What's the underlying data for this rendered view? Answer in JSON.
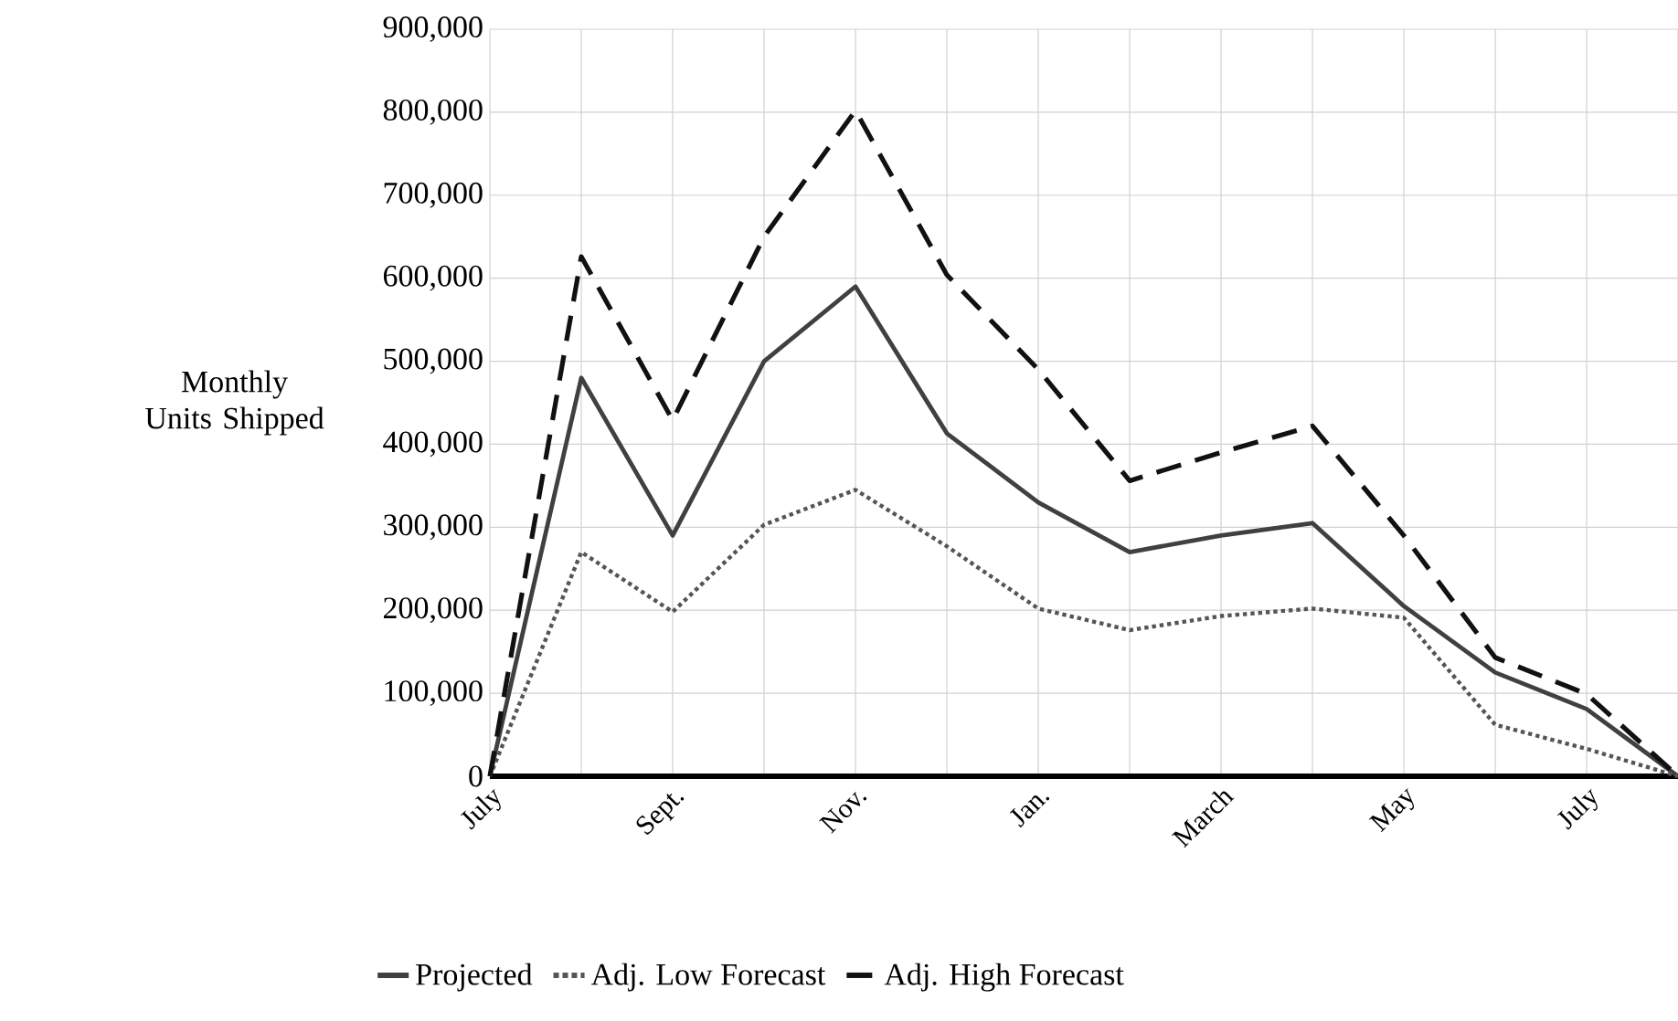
{
  "chart_data": {
    "type": "line",
    "ylabel": "Monthly Units Shipped",
    "categories": [
      "July",
      null,
      "Sept.",
      null,
      "Nov.",
      null,
      "Jan.",
      null,
      "March",
      null,
      "May",
      null,
      "July",
      null
    ],
    "series": [
      {
        "name": "Projected",
        "color": "#404040",
        "line_style": "solid",
        "values": [
          0,
          480000,
          290000,
          500000,
          590000,
          413000,
          330000,
          270000,
          290000,
          305000,
          205000,
          125000,
          81000,
          0
        ]
      },
      {
        "name": "Adj. Low Forecast",
        "color": "#555555",
        "line_style": "dotted",
        "values": [
          0,
          270000,
          198000,
          303000,
          345000,
          277000,
          202000,
          176000,
          193000,
          202000,
          191000,
          62000,
          33000,
          0
        ]
      },
      {
        "name": "Adj. High Forecast",
        "color": "#111111",
        "line_style": "dashed",
        "values": [
          0,
          626000,
          429000,
          650000,
          802000,
          604000,
          490000,
          356000,
          390000,
          422000,
          290000,
          143000,
          99000,
          0
        ]
      }
    ],
    "ylim": [
      0,
      900000
    ],
    "yticks": [
      {
        "value": 0,
        "label": "0"
      },
      {
        "value": 100000,
        "label": "100,000"
      },
      {
        "value": 200000,
        "label": "200,000"
      },
      {
        "value": 300000,
        "label": "300,000"
      },
      {
        "value": 400000,
        "label": "400,000"
      },
      {
        "value": 500000,
        "label": "500,000"
      },
      {
        "value": 600000,
        "label": "600,000"
      },
      {
        "value": 700000,
        "label": "700,000"
      },
      {
        "value": 800000,
        "label": "800,000"
      },
      {
        "value": 900000,
        "label": "900,000"
      }
    ],
    "grid": true,
    "legend": "bottom"
  }
}
